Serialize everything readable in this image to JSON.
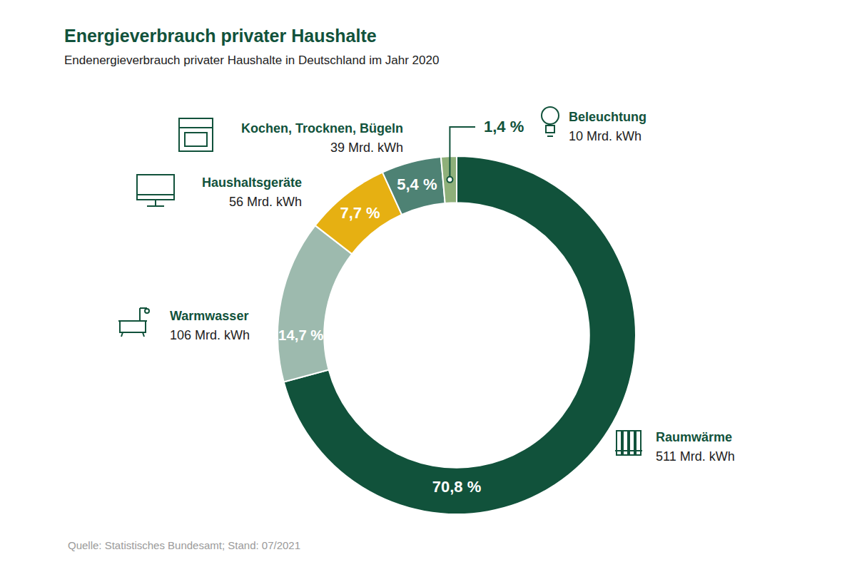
{
  "chart_data": {
    "type": "donut",
    "title": "Energieverbrauch privater Haushalte",
    "subtitle": "Endenergieverbrauch privater Haushalte in Deutschland im Jahr 2020",
    "source": "Quelle: Statistisches Bundesamt; Stand: 07/2021",
    "categories": [
      "Raumwärme",
      "Warmwasser",
      "Haushaltsgeräte",
      "Kochen, Trocknen, Bügeln",
      "Beleuchtung"
    ],
    "values": [
      70.8,
      14.7,
      7.7,
      5.4,
      1.4
    ],
    "value_labels": [
      "70,8 %",
      "14,7 %",
      "7,7 %",
      "5,4 %",
      "1,4 %"
    ],
    "amount_labels": [
      "511 Mrd. kWh",
      "106 Mrd. kWh",
      "56 Mrd. kWh",
      "39 Mrd. kWh",
      "10 Mrd. kWh"
    ],
    "colors": [
      "#11523b",
      "#9dbaae",
      "#e6b012",
      "#4e8274",
      "#8fb07a"
    ],
    "data_labels": true
  }
}
